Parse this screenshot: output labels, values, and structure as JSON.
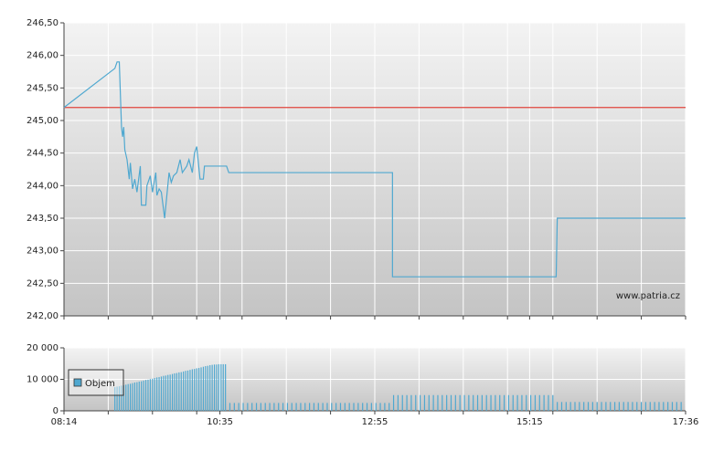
{
  "chart_data": [
    {
      "type": "line",
      "watermark": "www.patria.cz",
      "xlim": [
        494,
        1056
      ],
      "xgrid": [
        534,
        574,
        614,
        655,
        695,
        735,
        815,
        855,
        895,
        936,
        976,
        1016
      ],
      "ylim": [
        242,
        246.5
      ],
      "yticks": [
        {
          "value": 242,
          "label": "242,00"
        },
        {
          "value": 242.5,
          "label": "242,50"
        },
        {
          "value": 243,
          "label": "243,00"
        },
        {
          "value": 243.5,
          "label": "243,50"
        },
        {
          "value": 244,
          "label": "244,00"
        },
        {
          "value": 244.5,
          "label": "244,50"
        },
        {
          "value": 245,
          "label": "245,00"
        },
        {
          "value": 245.5,
          "label": "245,50"
        },
        {
          "value": 246,
          "label": "246,00"
        },
        {
          "value": 246.5,
          "label": "246,50"
        }
      ],
      "reference_line": {
        "value": 245.2,
        "color": "#e0453c"
      },
      "grid": true,
      "series": [
        {
          "color": "#4fa8d0",
          "x": [
            494,
            540,
            542,
            544,
            546,
            547,
            548,
            549,
            551,
            553,
            554,
            556,
            558,
            560,
            563,
            564,
            568,
            569,
            572,
            574,
            577,
            578,
            580,
            582,
            585,
            587,
            589,
            591,
            593,
            596,
            599,
            601,
            605,
            607,
            610,
            612,
            614,
            617,
            620,
            621,
            641,
            643,
            791,
            791,
            939,
            940,
            1056
          ],
          "values": [
            245.2,
            245.8,
            245.9,
            245.9,
            244.9,
            244.75,
            244.9,
            244.55,
            244.4,
            244.1,
            244.35,
            243.95,
            244.1,
            243.9,
            244.3,
            243.7,
            243.7,
            244.0,
            244.15,
            243.9,
            244.2,
            243.85,
            243.95,
            243.9,
            243.5,
            243.85,
            244.2,
            244.05,
            244.15,
            244.2,
            244.4,
            244.2,
            244.3,
            244.4,
            244.2,
            244.5,
            244.6,
            244.1,
            244.1,
            244.3,
            244.3,
            244.2,
            244.2,
            242.6,
            242.6,
            243.5,
            243.5
          ]
        }
      ]
    },
    {
      "type": "bar",
      "xlim": [
        494,
        1056
      ],
      "xticks": [
        {
          "value": 494,
          "label": "08:14"
        },
        {
          "value": 635,
          "label": "10:35"
        },
        {
          "value": 775,
          "label": "12:55"
        },
        {
          "value": 915,
          "label": "15:15"
        },
        {
          "value": 1056,
          "label": "17:36"
        }
      ],
      "xgrid": [
        534,
        574,
        614,
        655,
        695,
        735,
        815,
        855,
        895,
        936,
        976,
        1016
      ],
      "ylim": [
        0,
        20000
      ],
      "yticks": [
        0,
        {
          "value": 10000,
          "label": "10 000"
        },
        {
          "value": 20000,
          "label": "20 000"
        }
      ],
      "grid": true,
      "series": [
        {
          "name": "Objem",
          "color": "#4fa8d0",
          "x": [
            540,
            542,
            544,
            546,
            548,
            550,
            552,
            554,
            556,
            558,
            560,
            562,
            564,
            566,
            568,
            570,
            572,
            574,
            576,
            578,
            580,
            582,
            584,
            586,
            588,
            590,
            592,
            594,
            596,
            598,
            600,
            602,
            604,
            606,
            608,
            610,
            612,
            614,
            616,
            618,
            620,
            622,
            624,
            626,
            628,
            630,
            632,
            634,
            636,
            638,
            640,
            644,
            648,
            652,
            656,
            660,
            664,
            668,
            672,
            676,
            680,
            684,
            688,
            692,
            696,
            700,
            704,
            708,
            712,
            716,
            720,
            724,
            728,
            732,
            736,
            740,
            744,
            748,
            752,
            756,
            760,
            764,
            768,
            772,
            776,
            780,
            784,
            788,
            792,
            796,
            800,
            804,
            808,
            812,
            816,
            820,
            824,
            828,
            832,
            836,
            840,
            844,
            848,
            852,
            856,
            860,
            864,
            868,
            872,
            876,
            880,
            884,
            888,
            892,
            896,
            900,
            904,
            908,
            912,
            916,
            920,
            924,
            928,
            932,
            936,
            940,
            944,
            948,
            952,
            956,
            960,
            964,
            968,
            972,
            976,
            980,
            984,
            988,
            992,
            996,
            1000,
            1004,
            1008,
            1012,
            1016,
            1020,
            1024,
            1028,
            1032,
            1036,
            1040,
            1044,
            1048,
            1052
          ],
          "values": [
            7500,
            7700,
            7800,
            8000,
            8100,
            8300,
            8500,
            8600,
            8800,
            9000,
            9100,
            9300,
            9400,
            9600,
            9800,
            9900,
            10100,
            10200,
            10400,
            10600,
            10700,
            10900,
            11100,
            11200,
            11400,
            11500,
            11700,
            11900,
            12000,
            12200,
            12300,
            12500,
            12700,
            12800,
            13000,
            13200,
            13300,
            13500,
            13600,
            13800,
            14000,
            14200,
            14300,
            14500,
            14600,
            14700,
            14700,
            14800,
            14800,
            14800,
            14800,
            2500,
            2500,
            2500,
            2500,
            2500,
            2500,
            2500,
            2500,
            2500,
            2500,
            2500,
            2500,
            2500,
            2500,
            2500,
            2500,
            2500,
            2500,
            2500,
            2500,
            2500,
            2500,
            2500,
            2500,
            2500,
            2500,
            2500,
            2500,
            2500,
            2500,
            2500,
            2500,
            2500,
            2500,
            2500,
            2500,
            2500,
            5000,
            5000,
            5000,
            5000,
            5000,
            5000,
            5000,
            5000,
            5000,
            5000,
            5000,
            5000,
            5000,
            5000,
            5000,
            5000,
            5000,
            5000,
            5000,
            5000,
            5000,
            5000,
            5000,
            5000,
            5000,
            5000,
            5000,
            5000,
            5000,
            5000,
            5000,
            5000,
            5000,
            5000,
            5000,
            5000,
            5000,
            2800,
            2800,
            2800,
            2800,
            2800,
            2800,
            2800,
            2800,
            2800,
            2800,
            2800,
            2800,
            2800,
            2800,
            2800,
            2800,
            2800,
            2800,
            2800,
            2800,
            2800,
            2800,
            2800,
            2800,
            2800,
            2800,
            2800,
            2800,
            2800
          ]
        }
      ]
    }
  ]
}
